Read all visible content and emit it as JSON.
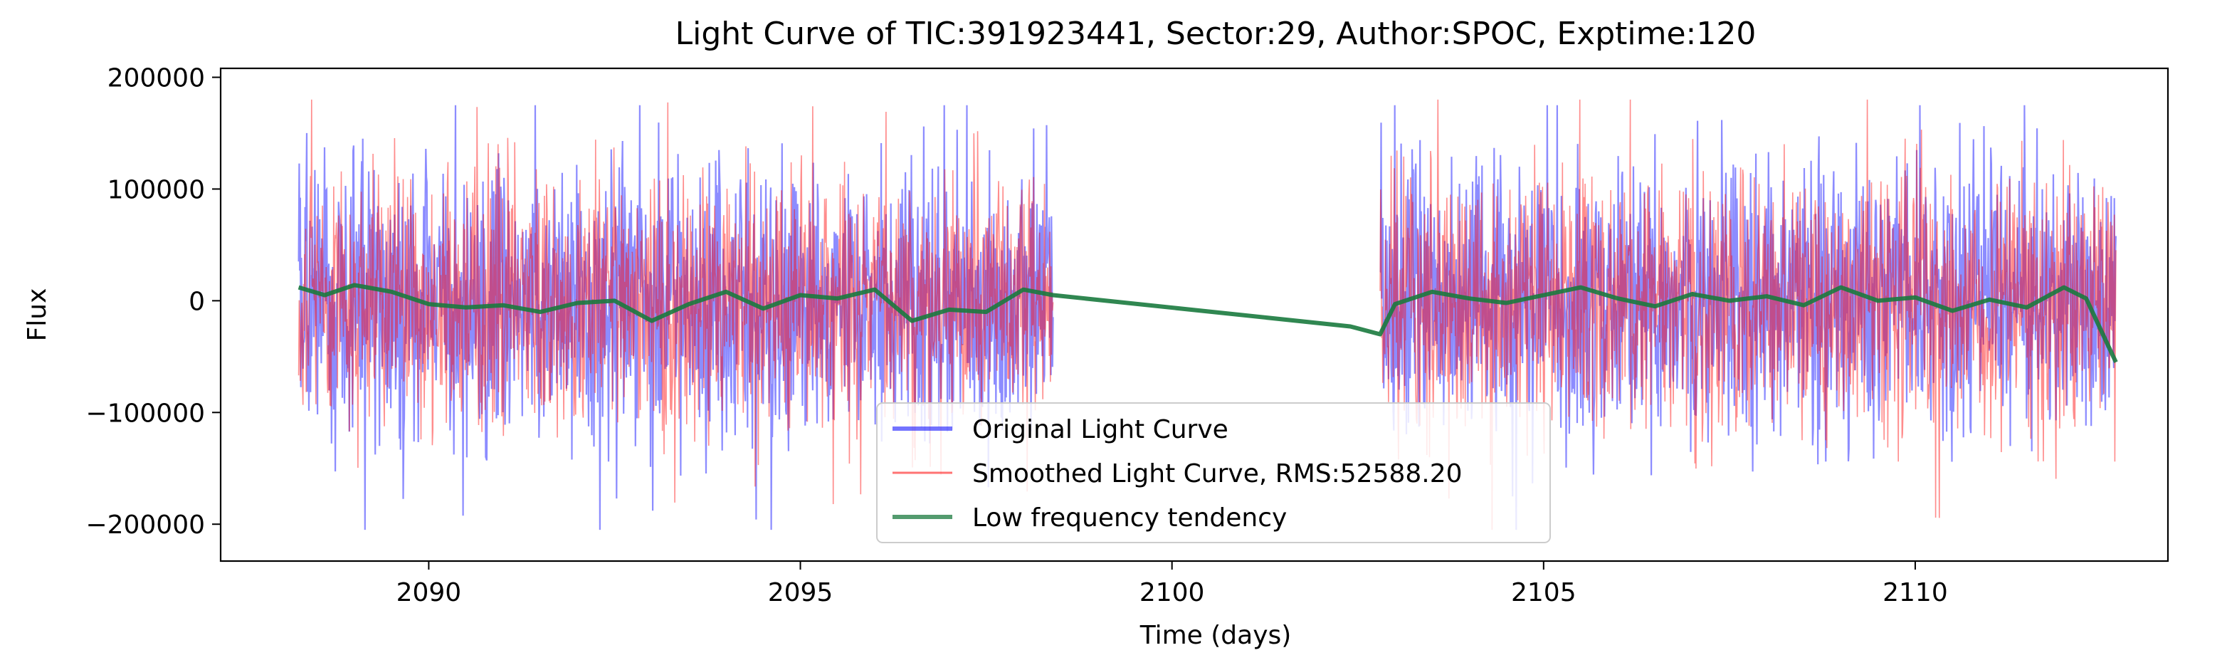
{
  "chart_data": {
    "type": "line",
    "title": "Light Curve of TIC:391923441, Sector:29, Author:SPOC, Exptime:120",
    "xlabel": "Time (days)",
    "ylabel": "Flux",
    "xlim": [
      2087.2,
      2113.4
    ],
    "ylim": [
      -233000,
      208000
    ],
    "xticks": [
      2090,
      2095,
      2100,
      2105,
      2110
    ],
    "xtick_labels": [
      "2090",
      "2095",
      "2100",
      "2105",
      "2110"
    ],
    "yticks": [
      -200000,
      -100000,
      0,
      100000,
      200000
    ],
    "ytick_labels": [
      "−200000",
      "−100000",
      "0",
      "100000",
      "200000"
    ],
    "grid": false,
    "legend_position": "lower-center",
    "segments": [
      {
        "x_start": 2088.25,
        "x_end": 2098.4
      },
      {
        "x_start": 2102.8,
        "x_end": 2112.7
      }
    ],
    "series": [
      {
        "name": "Original Light Curve",
        "color": "#0000ff",
        "style": "noise band",
        "typical_range": [
          -90000,
          90000
        ],
        "min": -205000,
        "max": 175000
      },
      {
        "name": "Smoothed Light Curve, RMS:52588.20",
        "color": "#ff0000",
        "style": "noise band",
        "typical_range": [
          -85000,
          85000
        ],
        "min": -213000,
        "max": 185000
      },
      {
        "name": "Low frequency tendency",
        "color": "#1a7a3e",
        "style": "smooth line",
        "x": [
          2088.25,
          2088.6,
          2089.0,
          2089.5,
          2090.0,
          2090.5,
          2091.0,
          2091.5,
          2092.0,
          2092.5,
          2093.0,
          2093.5,
          2094.0,
          2094.5,
          2095.0,
          2095.5,
          2096.0,
          2096.5,
          2097.0,
          2097.5,
          2098.0,
          2098.4,
          2102.4,
          2102.8,
          2103.0,
          2103.5,
          2104.0,
          2104.5,
          2105.0,
          2105.5,
          2106.0,
          2106.5,
          2107.0,
          2107.5,
          2108.0,
          2108.5,
          2109.0,
          2109.5,
          2110.0,
          2110.5,
          2111.0,
          2111.5,
          2112.0,
          2112.3,
          2112.7
        ],
        "y": [
          12000,
          5000,
          14000,
          8000,
          -3000,
          -6000,
          -4000,
          -10000,
          -2000,
          0,
          -18000,
          -3000,
          8000,
          -7000,
          5000,
          2000,
          10000,
          -18000,
          -8000,
          -10000,
          10000,
          5000,
          -23000,
          -30000,
          -3000,
          8000,
          2000,
          -2000,
          5000,
          12000,
          2000,
          -5000,
          6000,
          0,
          4000,
          -4000,
          12000,
          0,
          3000,
          -9000,
          1000,
          -6000,
          12000,
          2000,
          -55000
        ]
      }
    ]
  }
}
